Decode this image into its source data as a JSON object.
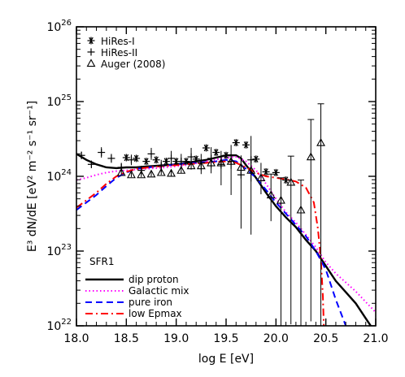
{
  "chart_data": {
    "type": "line",
    "xlabel": "log E [eV]",
    "ylabel": "E³ dN/dE [eV² m⁻² s⁻¹ sr⁻¹]",
    "xlim": [
      18.0,
      21.0
    ],
    "ylim_log10": [
      22,
      26
    ],
    "y_scale": "log",
    "x_ticks": [
      {
        "v": 18.0,
        "label": "18.0"
      },
      {
        "v": 18.5,
        "label": "18.5"
      },
      {
        "v": 19.0,
        "label": "19.0"
      },
      {
        "v": 19.5,
        "label": "19.5"
      },
      {
        "v": 20.0,
        "label": "20.0"
      },
      {
        "v": 20.5,
        "label": "20.5"
      },
      {
        "v": 21.0,
        "label": "21.0"
      }
    ],
    "y_ticks": [
      {
        "v": 22,
        "base": "10",
        "exp": "22"
      },
      {
        "v": 23,
        "base": "10",
        "exp": "23"
      },
      {
        "v": 24,
        "base": "10",
        "exp": "24"
      },
      {
        "v": 25,
        "base": "10",
        "exp": "25"
      },
      {
        "v": 26,
        "base": "10",
        "exp": "26"
      }
    ],
    "legend_top": {
      "placement": "top-left",
      "entries": [
        {
          "label": "HiRes-I",
          "marker": "asterisk"
        },
        {
          "label": "HiRes-II",
          "marker": "plus"
        },
        {
          "label": "Auger (2008)",
          "marker": "triangle"
        }
      ]
    },
    "legend_bottom": {
      "placement": "bottom-left",
      "title": "SFR1",
      "entries": [
        {
          "label": "dip proton",
          "color": "#000000",
          "dash": "solid"
        },
        {
          "label": "Galactic mix",
          "color": "#ff00ff",
          "dash": "dotted"
        },
        {
          "label": "pure iron",
          "color": "#0000ff",
          "dash": "dashed"
        },
        {
          "label": "low Epmax",
          "color": "#ff0000",
          "dash": "dashdot"
        }
      ]
    },
    "series": [
      {
        "name": "HiRes-I",
        "kind": "points",
        "marker": "asterisk",
        "x_log10E": [
          18.5,
          18.6,
          18.7,
          18.8,
          18.9,
          19.0,
          19.1,
          19.2,
          19.3,
          19.4,
          19.5,
          19.6,
          19.7,
          19.8,
          19.9,
          20.0,
          20.1
        ],
        "y_log10": [
          24.25,
          24.24,
          24.2,
          24.22,
          24.2,
          24.2,
          24.2,
          24.23,
          24.38,
          24.32,
          24.28,
          24.45,
          24.42,
          24.23,
          24.06,
          24.05,
          23.95
        ],
        "err_lo_log10": [
          null,
          null,
          null,
          null,
          null,
          null,
          null,
          null,
          null,
          null,
          null,
          null,
          null,
          null,
          null,
          null,
          null
        ],
        "err_hi_log10": [
          null,
          null,
          null,
          null,
          null,
          null,
          null,
          null,
          null,
          null,
          null,
          null,
          null,
          null,
          null,
          null,
          null
        ]
      },
      {
        "name": "HiRes-II",
        "kind": "points",
        "marker": "plus",
        "x_log10E": [
          18.05,
          18.15,
          18.25,
          18.35,
          18.45,
          18.55,
          18.65,
          18.75,
          18.85,
          18.95,
          19.05,
          19.15,
          19.25,
          19.35,
          19.45,
          19.55,
          19.65,
          19.75
        ],
        "y_log10": [
          24.28,
          24.16,
          24.32,
          24.24,
          24.12,
          24.22,
          24.08,
          24.3,
          24.14,
          24.24,
          24.2,
          24.26,
          24.18,
          24.24,
          24.16,
          24.2,
          24.02,
          24.22
        ],
        "err_lo_log10": [
          0.05,
          0.05,
          0.07,
          0.06,
          0.06,
          0.07,
          0.06,
          0.08,
          0.08,
          0.1,
          0.1,
          0.12,
          0.15,
          0.2,
          0.28,
          0.45,
          0.72,
          1.0
        ],
        "err_hi_log10": [
          0.05,
          0.05,
          0.07,
          0.06,
          0.06,
          0.07,
          0.06,
          0.08,
          0.08,
          0.1,
          0.1,
          0.12,
          0.12,
          0.15,
          0.18,
          0.22,
          0.26,
          0.32
        ]
      },
      {
        "name": "Auger (2008)",
        "kind": "points",
        "marker": "triangle",
        "x_log10E": [
          18.45,
          18.55,
          18.65,
          18.75,
          18.85,
          18.95,
          19.05,
          19.15,
          19.25,
          19.35,
          19.45,
          19.55,
          19.65,
          19.75,
          19.85,
          19.95,
          20.05,
          20.15,
          20.25,
          20.35,
          20.45
        ],
        "y_log10": [
          24.05,
          24.02,
          24.02,
          24.03,
          24.05,
          24.04,
          24.08,
          24.14,
          24.14,
          24.18,
          24.18,
          24.2,
          24.12,
          24.08,
          23.98,
          23.75,
          23.68,
          23.92,
          23.55,
          24.26,
          24.45
        ],
        "err_lo_log10": [
          0.03,
          0.03,
          0.03,
          0.03,
          0.03,
          0.04,
          0.04,
          0.05,
          0.06,
          0.07,
          0.08,
          0.1,
          0.12,
          0.15,
          0.22,
          0.35,
          1.7,
          1.9,
          1.6,
          2.2,
          2.5
        ],
        "err_hi_log10": [
          0.03,
          0.03,
          0.03,
          0.03,
          0.03,
          0.04,
          0.04,
          0.05,
          0.06,
          0.07,
          0.08,
          0.1,
          0.12,
          0.15,
          0.2,
          0.28,
          0.3,
          0.35,
          0.4,
          0.5,
          0.52
        ]
      },
      {
        "name": "dip proton",
        "kind": "line",
        "color": "#000000",
        "dash": "solid",
        "x_log10E": [
          18.0,
          18.1,
          18.2,
          18.3,
          18.4,
          18.5,
          18.6,
          18.7,
          18.8,
          18.9,
          19.0,
          19.1,
          19.2,
          19.3,
          19.4,
          19.5,
          19.6,
          19.65,
          19.7,
          19.8,
          19.9,
          20.0,
          20.1,
          20.2,
          20.3,
          20.4,
          20.5,
          20.6,
          20.7,
          20.8,
          20.9,
          20.95
        ],
        "y_log10": [
          24.3,
          24.22,
          24.16,
          24.12,
          24.11,
          24.12,
          24.12,
          24.13,
          24.14,
          24.15,
          24.16,
          24.18,
          24.2,
          24.22,
          24.25,
          24.28,
          24.28,
          24.24,
          24.15,
          23.98,
          23.78,
          23.6,
          23.45,
          23.32,
          23.15,
          23.0,
          22.8,
          22.6,
          22.45,
          22.3,
          22.1,
          22.0
        ]
      },
      {
        "name": "Galactic mix",
        "kind": "line",
        "color": "#ff00ff",
        "dash": "dotted",
        "x_log10E": [
          18.0,
          18.1,
          18.2,
          18.3,
          18.4,
          18.5,
          18.7,
          18.9,
          19.1,
          19.3,
          19.5,
          19.6,
          19.7,
          19.8,
          19.9,
          20.0,
          20.1,
          20.2,
          20.3,
          20.4,
          20.5,
          20.6,
          20.7,
          20.8,
          20.9,
          21.0
        ],
        "y_log10": [
          23.95,
          23.98,
          24.02,
          24.05,
          24.07,
          24.08,
          24.1,
          24.12,
          24.15,
          24.2,
          24.25,
          24.26,
          24.2,
          24.08,
          23.9,
          23.7,
          23.52,
          23.38,
          23.22,
          23.05,
          22.85,
          22.7,
          22.58,
          22.46,
          22.32,
          22.18
        ]
      },
      {
        "name": "pure iron",
        "kind": "line",
        "color": "#0000ff",
        "dash": "dashed",
        "x_log10E": [
          18.0,
          18.1,
          18.2,
          18.3,
          18.4,
          18.5,
          18.6,
          18.8,
          19.0,
          19.2,
          19.4,
          19.5,
          19.6,
          19.7,
          19.8,
          19.9,
          20.0,
          20.1,
          20.2,
          20.3,
          20.4,
          20.5,
          20.6,
          20.7
        ],
        "y_log10": [
          23.55,
          23.65,
          23.75,
          23.87,
          23.98,
          24.05,
          24.1,
          24.13,
          24.16,
          24.18,
          24.2,
          24.22,
          24.2,
          24.1,
          23.98,
          23.82,
          23.65,
          23.5,
          23.35,
          23.2,
          23.0,
          22.75,
          22.35,
          22.0
        ]
      },
      {
        "name": "low Epmax",
        "kind": "line",
        "color": "#ff0000",
        "dash": "dashdot",
        "x_log10E": [
          18.0,
          18.1,
          18.2,
          18.3,
          18.4,
          18.5,
          18.6,
          18.8,
          19.0,
          19.2,
          19.4,
          19.5,
          19.6,
          19.7,
          19.8,
          19.9,
          20.0,
          20.1,
          20.2,
          20.3,
          20.38,
          20.42,
          20.45,
          20.47,
          20.48
        ],
        "y_log10": [
          23.58,
          23.68,
          23.78,
          23.9,
          24.0,
          24.06,
          24.1,
          24.13,
          24.15,
          24.17,
          24.19,
          24.2,
          24.18,
          24.12,
          24.05,
          24.0,
          23.98,
          23.96,
          23.93,
          23.85,
          23.65,
          23.3,
          22.9,
          22.4,
          22.0
        ]
      }
    ]
  }
}
